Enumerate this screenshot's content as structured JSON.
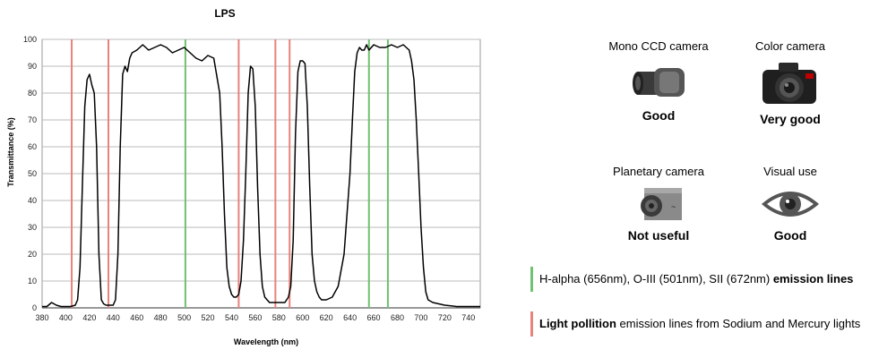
{
  "chart_data": {
    "type": "line",
    "title": "LPS",
    "xlabel": "Wavelength (nm)",
    "ylabel": "Transmittance (%)",
    "xlim": [
      380,
      750
    ],
    "ylim": [
      0,
      100
    ],
    "xticks": [
      380,
      400,
      420,
      440,
      460,
      480,
      500,
      520,
      540,
      560,
      580,
      600,
      620,
      640,
      660,
      680,
      700,
      720,
      740
    ],
    "yticks": [
      0,
      10,
      20,
      30,
      40,
      50,
      60,
      70,
      80,
      90,
      100
    ],
    "grid": true,
    "series": [
      {
        "color": "#000000",
        "x": [
          380,
          384,
          388,
          392,
          396,
          400,
          404,
          408,
          410,
          412,
          414,
          416,
          418,
          420,
          422,
          424,
          426,
          428,
          430,
          432,
          434,
          436,
          440,
          442,
          444,
          446,
          448,
          450,
          452,
          454,
          456,
          460,
          465,
          470,
          475,
          480,
          485,
          490,
          495,
          500,
          505,
          510,
          515,
          520,
          525,
          530,
          532,
          534,
          536,
          538,
          540,
          542,
          544,
          546,
          548,
          550,
          552,
          554,
          556,
          558,
          560,
          562,
          564,
          566,
          568,
          570,
          572,
          574,
          576,
          580,
          585,
          588,
          590,
          592,
          594,
          596,
          598,
          600,
          602,
          604,
          606,
          608,
          610,
          612,
          614,
          616,
          620,
          625,
          630,
          635,
          640,
          642,
          644,
          646,
          648,
          650,
          652,
          654,
          656,
          660,
          665,
          670,
          675,
          680,
          685,
          690,
          692,
          694,
          696,
          698,
          700,
          702,
          704,
          706,
          710,
          720,
          730,
          740,
          750
        ],
        "y": [
          0.5,
          0.5,
          2,
          1,
          0.5,
          0.5,
          0.5,
          1,
          3,
          15,
          45,
          75,
          85,
          87,
          83,
          80,
          60,
          20,
          3,
          1.5,
          1,
          1,
          1,
          3,
          20,
          60,
          87,
          90,
          88,
          93,
          95,
          96,
          98,
          96,
          97,
          98,
          97,
          95,
          96,
          97,
          95,
          93,
          92,
          94,
          93,
          80,
          60,
          35,
          15,
          8,
          5,
          4,
          4,
          5,
          10,
          25,
          50,
          80,
          90,
          89,
          75,
          45,
          20,
          8,
          4,
          3,
          2,
          2,
          2,
          2,
          2,
          4,
          8,
          25,
          65,
          88,
          92,
          92,
          91,
          75,
          45,
          20,
          10,
          6,
          4,
          3,
          3,
          4,
          8,
          20,
          50,
          70,
          88,
          95,
          97,
          96,
          96,
          98,
          96,
          98,
          97,
          97,
          98,
          97,
          98,
          96,
          92,
          85,
          70,
          50,
          30,
          15,
          6,
          3,
          2,
          1,
          0.5,
          0.5,
          0.5
        ]
      }
    ],
    "emission_lines": {
      "light_pollution": {
        "color": "#e8827c",
        "wavelengths": [
          405,
          436,
          546,
          577,
          589
        ]
      },
      "nebula": {
        "color": "#6fc26f",
        "wavelengths": [
          501,
          656,
          672
        ]
      }
    }
  },
  "cameras": [
    {
      "label": "Mono CCD camera",
      "rating": "Good",
      "icon": "mono-ccd-camera-icon"
    },
    {
      "label": "Color camera",
      "rating": "Very good",
      "icon": "dslr-camera-icon"
    },
    {
      "label": "Planetary camera",
      "rating": "Not useful",
      "icon": "planetary-camera-icon"
    },
    {
      "label": "Visual use",
      "rating": "Good",
      "icon": "eye-icon"
    }
  ],
  "legend": {
    "nebula": {
      "text": "H-alpha (656nm), O-III (501nm), SII (672nm) ",
      "bold": "emission lines",
      "color": "#6fc26f"
    },
    "pollution": {
      "bold": "Light pollition",
      "text": " emission lines from Sodium and Mercury lights",
      "color": "#e8827c"
    }
  }
}
